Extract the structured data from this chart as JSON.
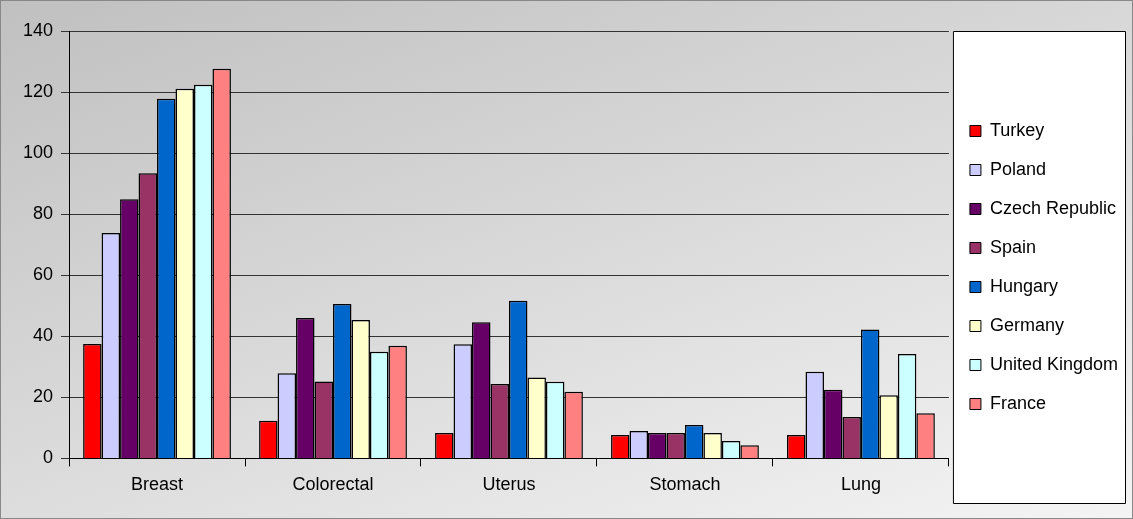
{
  "chart_data": {
    "type": "bar",
    "categories": [
      "Breast",
      "Colorectal",
      "Uterus",
      "Stomach",
      "Lung"
    ],
    "series": [
      {
        "name": "Turkey",
        "color": "#ff0000",
        "values": [
          37.5,
          12.3,
          8.3,
          7.7,
          7.7
        ]
      },
      {
        "name": "Poland",
        "color": "#ccccff",
        "values": [
          73.8,
          27.9,
          37.4,
          9.0,
          28.4
        ]
      },
      {
        "name": "Czech Republic",
        "color": "#660066",
        "values": [
          84.9,
          46.0,
          44.6,
          8.3,
          22.5
        ]
      },
      {
        "name": "Spain",
        "color": "#993366",
        "values": [
          93.4,
          25.2,
          24.4,
          8.3,
          13.6
        ]
      },
      {
        "name": "Hungary",
        "color": "#0066cc",
        "values": [
          117.8,
          50.6,
          51.6,
          10.9,
          42.2
        ]
      },
      {
        "name": "Germany",
        "color": "#ffffcc",
        "values": [
          121.1,
          45.3,
          26.5,
          8.3,
          20.7
        ]
      },
      {
        "name": "United Kingdom",
        "color": "#ccffff",
        "values": [
          122.4,
          34.9,
          25.1,
          5.7,
          34.2
        ]
      },
      {
        "name": "France",
        "color": "#ff8080",
        "values": [
          127.6,
          36.9,
          21.8,
          4.3,
          14.8
        ]
      }
    ],
    "ylim": [
      0,
      140
    ],
    "yticks": [
      0,
      20,
      40,
      60,
      80,
      100,
      120,
      140
    ],
    "grid": "y",
    "legend": "right"
  }
}
